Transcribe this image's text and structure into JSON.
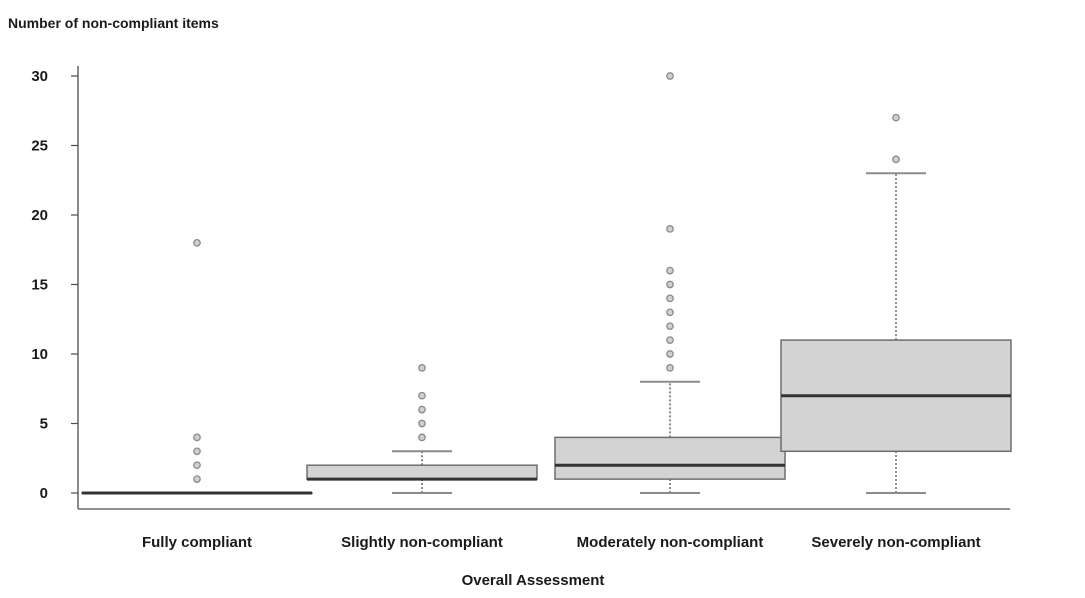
{
  "chart_data": {
    "type": "boxplot",
    "title": "",
    "ylabel": "Number of non-compliant items",
    "xlabel": "Overall Assessment",
    "ylim": [
      -1.2,
      31.2
    ],
    "yticks": [
      0,
      5,
      10,
      15,
      20,
      25,
      30
    ],
    "categories": [
      "Fully compliant",
      "Slightly non-compliant",
      "Moderately non-compliant",
      "Severely non-compliant"
    ],
    "boxes": [
      {
        "category": "Fully compliant",
        "whisker_low": 0,
        "q1": 0,
        "median": 0,
        "q3": 0,
        "whisker_high": 0,
        "outliers": [
          1,
          2,
          3,
          4,
          18
        ]
      },
      {
        "category": "Slightly non-compliant",
        "whisker_low": 0,
        "q1": 1,
        "median": 1,
        "q3": 2,
        "whisker_high": 3,
        "outliers": [
          4,
          5,
          6,
          7,
          9
        ]
      },
      {
        "category": "Moderately non-compliant",
        "whisker_low": 0,
        "q1": 1,
        "median": 2,
        "q3": 4,
        "whisker_high": 8,
        "outliers": [
          9,
          10,
          11,
          12,
          13,
          14,
          15,
          16,
          19,
          30
        ]
      },
      {
        "category": "Severely non-compliant",
        "whisker_low": 0,
        "q1": 3,
        "median": 7,
        "q3": 11,
        "whisker_high": 23,
        "outliers": [
          24,
          27
        ]
      }
    ],
    "colors": {
      "box_fill": "#d3d3d3",
      "box_stroke": "#6e6e6e",
      "median": "#333333",
      "whisker": "#8c8c8c",
      "outlier": "#8a8a8a"
    },
    "grid": false,
    "legend": "none"
  }
}
